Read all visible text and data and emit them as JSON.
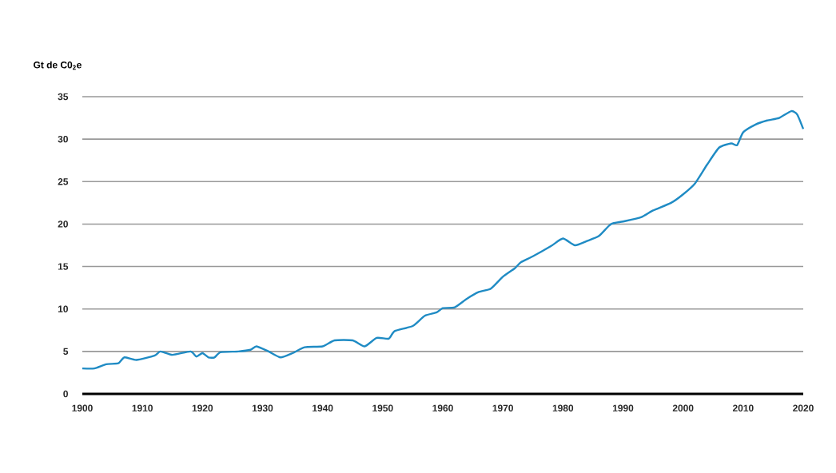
{
  "chart_data": {
    "type": "line",
    "ylabel": "Gt de C0$_{2}$e",
    "x": [
      1900,
      1902,
      1904,
      1906,
      1907,
      1909,
      1912,
      1913,
      1915,
      1918,
      1919,
      1920,
      1921,
      1922,
      1923,
      1926,
      1928,
      1929,
      1931,
      1933,
      1935,
      1937,
      1940,
      1942,
      1945,
      1947,
      1949,
      1951,
      1952,
      1955,
      1957,
      1959,
      1960,
      1962,
      1964,
      1966,
      1968,
      1970,
      1972,
      1973,
      1975,
      1978,
      1980,
      1982,
      1984,
      1986,
      1988,
      1990,
      1993,
      1995,
      1998,
      2000,
      2002,
      2004,
      2006,
      2008,
      2009,
      2010,
      2012,
      2014,
      2016,
      2018,
      2019,
      2020
    ],
    "series": [
      {
        "color": "#1f8bc4",
        "values": [
          3.0,
          3.0,
          3.5,
          3.6,
          4.3,
          4.0,
          4.5,
          5.0,
          4.6,
          5.0,
          4.4,
          4.8,
          4.3,
          4.3,
          4.9,
          5.0,
          5.2,
          5.6,
          5.0,
          4.3,
          4.8,
          5.5,
          5.6,
          6.3,
          6.3,
          5.6,
          6.6,
          6.5,
          7.4,
          8.0,
          9.2,
          9.6,
          10.1,
          10.2,
          11.2,
          12.0,
          12.4,
          13.8,
          14.8,
          15.5,
          16.2,
          17.4,
          18.3,
          17.5,
          18.0,
          18.6,
          20.0,
          20.3,
          20.8,
          21.6,
          22.5,
          23.5,
          24.8,
          27.0,
          29.0,
          29.5,
          29.3,
          30.8,
          31.7,
          32.2,
          32.5,
          33.3,
          32.9,
          31.2
        ]
      }
    ],
    "xlim": [
      1900,
      2020
    ],
    "xticks": [
      1900,
      1910,
      1920,
      1930,
      1940,
      1950,
      1960,
      1970,
      1980,
      1990,
      2000,
      2010,
      2020
    ],
    "ylim": [
      0,
      35
    ],
    "yticks": [
      0,
      5,
      10,
      15,
      20,
      25,
      30,
      35
    ],
    "grid": "y",
    "marker": "none",
    "line_style": "solid"
  }
}
